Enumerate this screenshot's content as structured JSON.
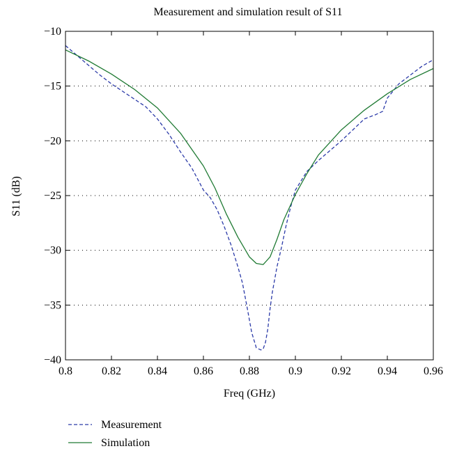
{
  "chart_data": {
    "type": "line",
    "title": "Measurement and simulation result of S11",
    "xlabel": "Freq (GHz)",
    "ylabel": "S11 (dB)",
    "xlim": [
      0.8,
      0.96
    ],
    "ylim": [
      -40,
      -10
    ],
    "xticks": [
      0.8,
      0.82,
      0.84,
      0.86,
      0.88,
      0.9,
      0.92,
      0.94,
      0.96
    ],
    "xtick_labels": [
      "0.8",
      "0.82",
      "0.84",
      "0.86",
      "0.88",
      "0.9",
      "0.92",
      "0.94",
      "0.96"
    ],
    "yticks": [
      -40,
      -35,
      -30,
      -25,
      -20,
      -15,
      -10
    ],
    "ytick_labels": [
      "−40",
      "−35",
      "−30",
      "−25",
      "−20",
      "−15",
      "−10"
    ],
    "grid": "horizontal dotted",
    "legend_position": "bottom-left",
    "series": [
      {
        "name": "Measurement",
        "color": "#2b3aa8",
        "style": "dashed",
        "x": [
          0.8,
          0.805,
          0.81,
          0.815,
          0.82,
          0.825,
          0.83,
          0.835,
          0.84,
          0.845,
          0.85,
          0.855,
          0.86,
          0.863,
          0.866,
          0.869,
          0.872,
          0.875,
          0.877,
          0.879,
          0.881,
          0.883,
          0.884,
          0.885,
          0.886,
          0.887,
          0.888,
          0.889,
          0.89,
          0.892,
          0.894,
          0.896,
          0.898,
          0.9,
          0.905,
          0.91,
          0.915,
          0.92,
          0.925,
          0.93,
          0.935,
          0.938,
          0.94,
          0.945,
          0.95,
          0.955,
          0.96
        ],
        "y": [
          -11.3,
          -12.2,
          -13.1,
          -14.0,
          -14.8,
          -15.5,
          -16.2,
          -16.9,
          -18.0,
          -19.4,
          -21.0,
          -22.5,
          -24.5,
          -25.2,
          -26.3,
          -27.8,
          -29.5,
          -31.5,
          -33.0,
          -35.2,
          -37.5,
          -38.9,
          -39.0,
          -39.1,
          -39.0,
          -38.4,
          -37.2,
          -35.3,
          -33.8,
          -31.5,
          -29.7,
          -27.7,
          -26.0,
          -24.5,
          -22.8,
          -21.8,
          -20.9,
          -20.0,
          -19.0,
          -18.0,
          -17.6,
          -17.3,
          -16.1,
          -14.8,
          -14.0,
          -13.2,
          -12.6
        ]
      },
      {
        "name": "Simulation",
        "color": "#1f7a33",
        "style": "solid",
        "x": [
          0.8,
          0.81,
          0.82,
          0.83,
          0.84,
          0.85,
          0.86,
          0.865,
          0.87,
          0.875,
          0.88,
          0.883,
          0.886,
          0.889,
          0.892,
          0.895,
          0.9,
          0.905,
          0.91,
          0.92,
          0.93,
          0.94,
          0.95,
          0.96
        ],
        "y": [
          -11.7,
          -12.7,
          -13.9,
          -15.3,
          -17.0,
          -19.3,
          -22.3,
          -24.3,
          -26.7,
          -28.8,
          -30.6,
          -31.2,
          -31.3,
          -30.6,
          -29.0,
          -27.2,
          -24.9,
          -23.0,
          -21.3,
          -19.0,
          -17.2,
          -15.7,
          -14.4,
          -13.4
        ]
      }
    ]
  }
}
